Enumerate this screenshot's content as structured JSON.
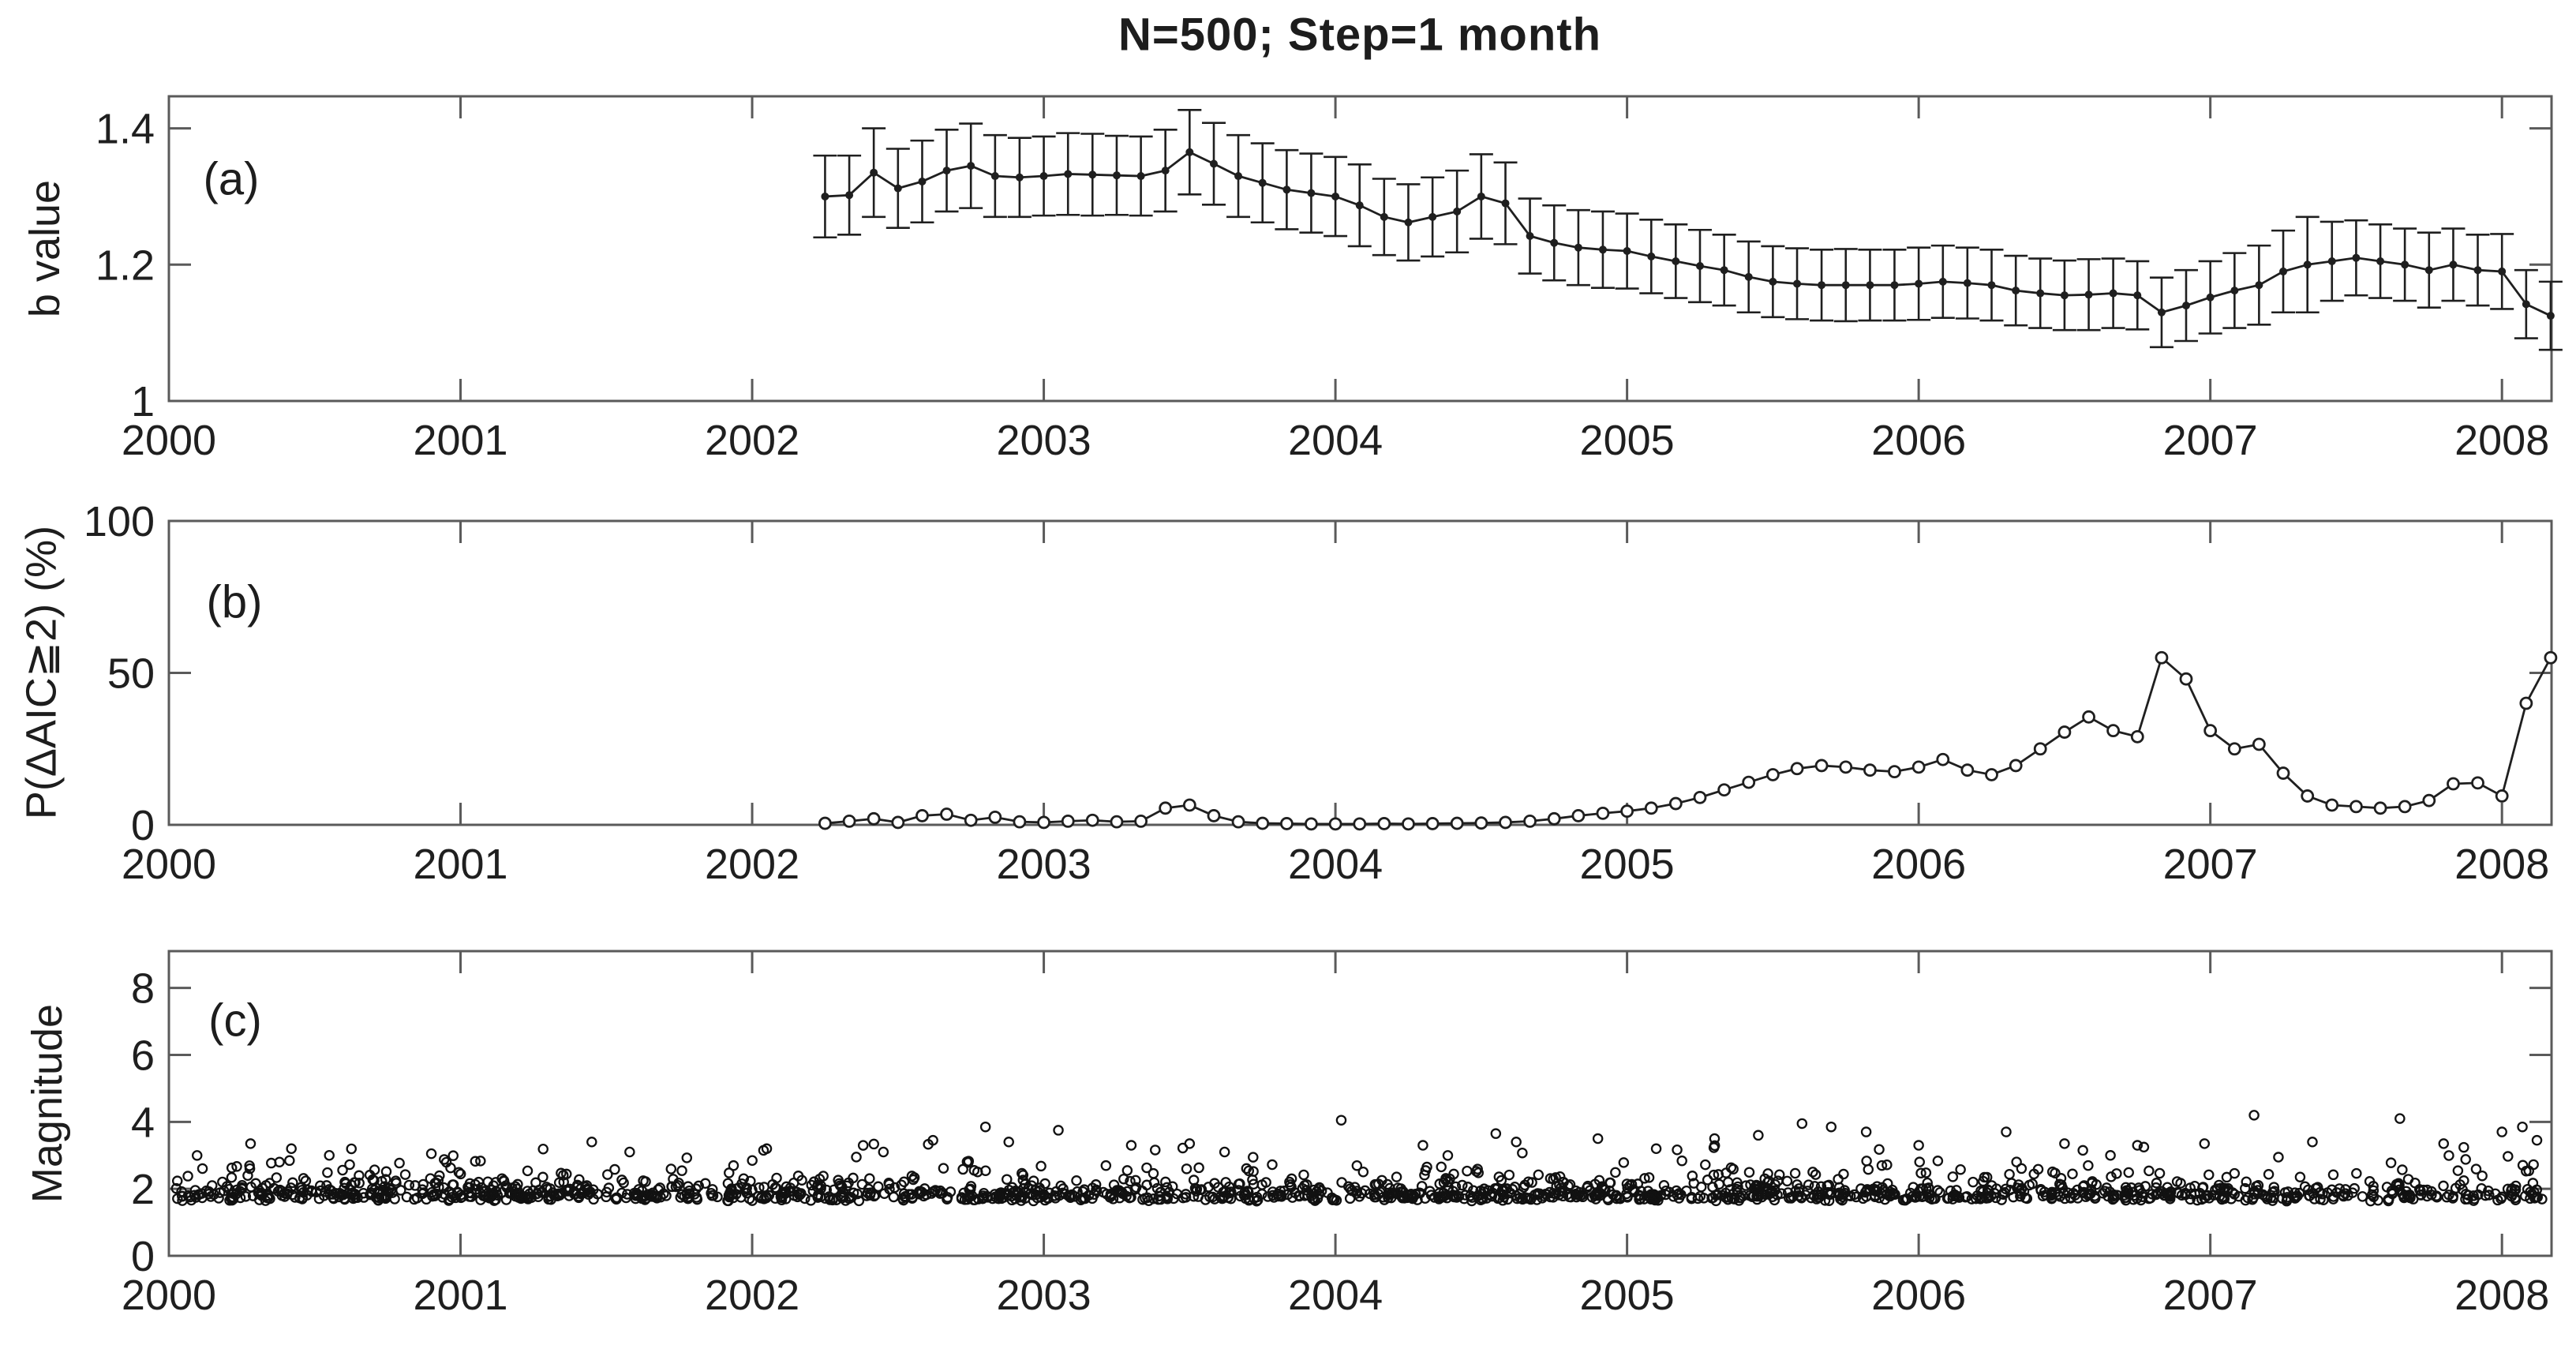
{
  "figure": {
    "title": "N=500; Step=1 month",
    "ink": "#1f1f1f",
    "spine": "#5a5a5a",
    "background": "#ffffff"
  },
  "xaxis": {
    "lim": [
      2000,
      2008.17
    ],
    "ticks": [
      2000,
      2001,
      2002,
      2003,
      2004,
      2005,
      2006,
      2007,
      2008
    ]
  },
  "chart_data": [
    {
      "id": "a",
      "type": "line-errorbar",
      "letter": "(a)",
      "ylabel": "b value",
      "ylim": [
        1.0,
        1.447
      ],
      "yticks": [
        1,
        1.2,
        1.4
      ],
      "x": [
        2002.25,
        2002.333,
        2002.417,
        2002.5,
        2002.583,
        2002.667,
        2002.75,
        2002.833,
        2002.917,
        2003,
        2003.083,
        2003.167,
        2003.25,
        2003.333,
        2003.417,
        2003.5,
        2003.583,
        2003.667,
        2003.75,
        2003.833,
        2003.917,
        2004,
        2004.083,
        2004.167,
        2004.25,
        2004.333,
        2004.417,
        2004.5,
        2004.583,
        2004.667,
        2004.75,
        2004.833,
        2004.917,
        2005,
        2005.083,
        2005.167,
        2005.25,
        2005.333,
        2005.417,
        2005.5,
        2005.583,
        2005.667,
        2005.75,
        2005.833,
        2005.917,
        2006,
        2006.083,
        2006.167,
        2006.25,
        2006.333,
        2006.417,
        2006.5,
        2006.583,
        2006.667,
        2006.75,
        2006.833,
        2006.917,
        2007,
        2007.083,
        2007.167,
        2007.25,
        2007.333,
        2007.417,
        2007.5,
        2007.583,
        2007.667,
        2007.75,
        2007.833,
        2007.917,
        2008,
        2008.083,
        2008.167
      ],
      "y": [
        1.3,
        1.302,
        1.335,
        1.312,
        1.322,
        1.338,
        1.345,
        1.33,
        1.328,
        1.33,
        1.333,
        1.332,
        1.331,
        1.33,
        1.338,
        1.365,
        1.348,
        1.33,
        1.32,
        1.31,
        1.305,
        1.3,
        1.287,
        1.27,
        1.262,
        1.27,
        1.278,
        1.3,
        1.29,
        1.242,
        1.232,
        1.225,
        1.222,
        1.22,
        1.212,
        1.205,
        1.198,
        1.192,
        1.182,
        1.175,
        1.172,
        1.17,
        1.17,
        1.17,
        1.17,
        1.172,
        1.175,
        1.173,
        1.17,
        1.162,
        1.158,
        1.155,
        1.156,
        1.158,
        1.155,
        1.13,
        1.14,
        1.152,
        1.162,
        1.17,
        1.19,
        1.2,
        1.205,
        1.21,
        1.205,
        1.2,
        1.192,
        1.2,
        1.192,
        1.19,
        1.142,
        1.125
      ],
      "yerr": [
        0.06,
        0.058,
        0.065,
        0.058,
        0.06,
        0.06,
        0.062,
        0.06,
        0.058,
        0.058,
        0.06,
        0.06,
        0.058,
        0.058,
        0.06,
        0.062,
        0.06,
        0.06,
        0.058,
        0.058,
        0.058,
        0.058,
        0.06,
        0.056,
        0.056,
        0.058,
        0.06,
        0.062,
        0.06,
        0.055,
        0.055,
        0.055,
        0.056,
        0.055,
        0.054,
        0.054,
        0.053,
        0.052,
        0.052,
        0.052,
        0.052,
        0.052,
        0.053,
        0.052,
        0.052,
        0.053,
        0.053,
        0.052,
        0.052,
        0.051,
        0.051,
        0.051,
        0.052,
        0.051,
        0.05,
        0.051,
        0.052,
        0.053,
        0.055,
        0.058,
        0.06,
        0.07,
        0.058,
        0.055,
        0.054,
        0.053,
        0.055,
        0.053,
        0.052,
        0.055,
        0.05,
        0.05
      ]
    },
    {
      "id": "b",
      "type": "line-scatter",
      "letter": "(b)",
      "ylabel": "P(ΔAIC≧2) (%)",
      "ylim": [
        0,
        100
      ],
      "yticks": [
        0,
        50,
        100
      ],
      "x": [
        2002.25,
        2002.333,
        2002.417,
        2002.5,
        2002.583,
        2002.667,
        2002.75,
        2002.833,
        2002.917,
        2003,
        2003.083,
        2003.167,
        2003.25,
        2003.333,
        2003.417,
        2003.5,
        2003.583,
        2003.667,
        2003.75,
        2003.833,
        2003.917,
        2004,
        2004.083,
        2004.167,
        2004.25,
        2004.333,
        2004.417,
        2004.5,
        2004.583,
        2004.667,
        2004.75,
        2004.833,
        2004.917,
        2005,
        2005.083,
        2005.167,
        2005.25,
        2005.333,
        2005.417,
        2005.5,
        2005.583,
        2005.667,
        2005.75,
        2005.833,
        2005.917,
        2006,
        2006.083,
        2006.167,
        2006.25,
        2006.333,
        2006.417,
        2006.5,
        2006.583,
        2006.667,
        2006.75,
        2006.833,
        2006.917,
        2007,
        2007.083,
        2007.167,
        2007.25,
        2007.333,
        2007.417,
        2007.5,
        2007.583,
        2007.667,
        2007.75,
        2007.833,
        2007.917,
        2008,
        2008.083,
        2008.167
      ],
      "y": [
        0.5,
        1.2,
        2.0,
        0.8,
        3.0,
        3.5,
        1.5,
        2.5,
        1.0,
        0.8,
        1.2,
        1.5,
        1.0,
        1.2,
        5.5,
        6.5,
        3.0,
        1.0,
        0.5,
        0.4,
        0.3,
        0.3,
        0.3,
        0.4,
        0.3,
        0.4,
        0.5,
        0.6,
        0.8,
        1.2,
        2.0,
        3.0,
        3.8,
        4.5,
        5.5,
        7.0,
        9.0,
        11.5,
        14.0,
        16.5,
        18.5,
        19.5,
        19.0,
        18.0,
        17.5,
        19.0,
        21.5,
        18.0,
        16.5,
        19.5,
        25.0,
        30.5,
        35.5,
        31.0,
        29.0,
        55.0,
        48.0,
        31.0,
        25.0,
        26.5,
        17.0,
        9.5,
        6.5,
        6.0,
        5.5,
        6.0,
        8.0,
        13.5,
        13.8,
        9.5,
        40.0,
        55.0
      ]
    },
    {
      "id": "c",
      "type": "scatter",
      "letter": "(c)",
      "ylabel": "Magnitude",
      "ylim": [
        0,
        9.1
      ],
      "yticks": [
        0,
        2,
        4,
        6,
        8
      ],
      "generator": {
        "seed": 7,
        "n": 1700,
        "t_range": [
          2000.02,
          2008.15
        ],
        "base_mag": 1.68,
        "mix": [
          {
            "w": 0.86,
            "mean": 0.24
          },
          {
            "w": 0.14,
            "mean": 0.52
          }
        ],
        "cap": 3.35,
        "jitter": 0.05
      },
      "outliers": [
        [
          2000.28,
          3.35
        ],
        [
          2000.42,
          3.2
        ],
        [
          2000.55,
          3.0
        ],
        [
          2000.9,
          3.05
        ],
        [
          2001.45,
          3.4
        ],
        [
          2001.58,
          3.1
        ],
        [
          2002.05,
          3.2
        ],
        [
          2002.45,
          3.1
        ],
        [
          2002.62,
          3.45
        ],
        [
          2002.8,
          3.85
        ],
        [
          2002.88,
          3.4
        ],
        [
          2003.05,
          3.75
        ],
        [
          2003.3,
          3.3
        ],
        [
          2003.5,
          3.35
        ],
        [
          2003.62,
          3.1
        ],
        [
          2004.02,
          4.05
        ],
        [
          2004.3,
          3.3
        ],
        [
          2004.55,
          3.65
        ],
        [
          2004.62,
          3.4
        ],
        [
          2004.9,
          3.5
        ],
        [
          2005.1,
          3.2
        ],
        [
          2005.3,
          3.5
        ],
        [
          2005.45,
          3.6
        ],
        [
          2005.6,
          3.95
        ],
        [
          2005.7,
          3.85
        ],
        [
          2005.82,
          3.7
        ],
        [
          2006.0,
          3.3
        ],
        [
          2006.3,
          3.7
        ],
        [
          2006.5,
          3.35
        ],
        [
          2006.75,
          3.3
        ],
        [
          2006.98,
          3.35
        ],
        [
          2007.15,
          4.2
        ],
        [
          2007.35,
          3.4
        ],
        [
          2007.65,
          4.1
        ],
        [
          2007.8,
          3.35
        ],
        [
          2008.0,
          3.7
        ],
        [
          2008.07,
          3.85
        ],
        [
          2008.12,
          3.45
        ]
      ]
    }
  ]
}
